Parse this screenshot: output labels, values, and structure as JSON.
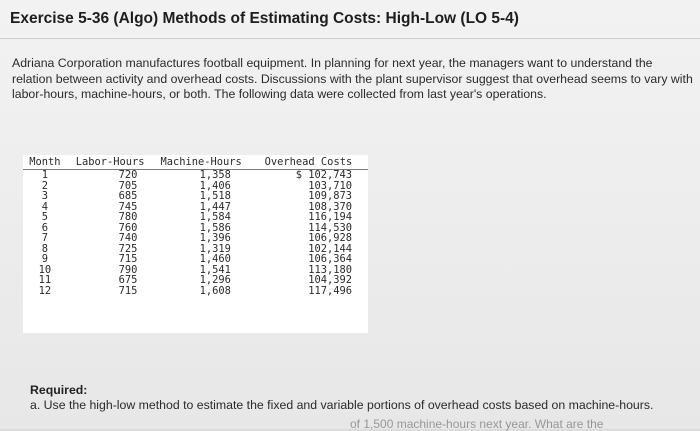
{
  "header": {
    "title": "Exercise 5-36 (Algo) Methods of Estimating Costs: High-Low (LO 5-4)"
  },
  "intro": {
    "text": "Adriana Corporation manufactures football equipment. In planning for next year, the managers want to understand the relation between activity and overhead costs. Discussions with the plant supervisor suggest that overhead seems to vary with labor-hours, machine-hours, or both. The following data were collected from last year's operations."
  },
  "table": {
    "headers": {
      "month": "Month",
      "labor_hours": "Labor-Hours",
      "machine_hours": "Machine-Hours",
      "overhead": "Overhead Costs"
    },
    "rows": [
      {
        "month": "1",
        "labor": "720",
        "machine": "1,358",
        "overhead": "$ 102,743"
      },
      {
        "month": "2",
        "labor": "705",
        "machine": "1,406",
        "overhead": "103,710"
      },
      {
        "month": "3",
        "labor": "685",
        "machine": "1,518",
        "overhead": "109,873"
      },
      {
        "month": "4",
        "labor": "745",
        "machine": "1,447",
        "overhead": "108,370"
      },
      {
        "month": "5",
        "labor": "780",
        "machine": "1,584",
        "overhead": "116,194"
      },
      {
        "month": "6",
        "labor": "760",
        "machine": "1,586",
        "overhead": "114,530"
      },
      {
        "month": "7",
        "labor": "740",
        "machine": "1,396",
        "overhead": "106,928"
      },
      {
        "month": "8",
        "labor": "725",
        "machine": "1,319",
        "overhead": "102,144"
      },
      {
        "month": "9",
        "labor": "715",
        "machine": "1,460",
        "overhead": "106,364"
      },
      {
        "month": "10",
        "labor": "790",
        "machine": "1,541",
        "overhead": "113,180"
      },
      {
        "month": "11",
        "labor": "675",
        "machine": "1,296",
        "overhead": "104,392"
      },
      {
        "month": "12",
        "labor": "715",
        "machine": "1,608",
        "overhead": "117,496"
      }
    ]
  },
  "required": {
    "label": "Required:",
    "question_a": "a. Use the high-low method to estimate the fixed and variable portions of overhead costs based on machine-hours.",
    "cut_text": "of 1,500 machine-hours next year. What are the"
  }
}
